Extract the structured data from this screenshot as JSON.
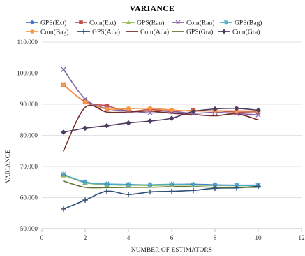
{
  "chart_data": {
    "type": "line",
    "title": "VARIANCE",
    "xlabel": "NUMBER OF ESTIMATORS",
    "ylabel": "VARIANCE",
    "xlim": [
      0,
      12
    ],
    "ylim": [
      50,
      110
    ],
    "x_ticks": [
      0,
      2,
      4,
      6,
      8,
      10,
      12
    ],
    "y_ticks": [
      50,
      60,
      70,
      80,
      90,
      100,
      110
    ],
    "x_tick_labels": [
      "0",
      "2",
      "4",
      "6",
      "8",
      "10",
      "12"
    ],
    "y_tick_labels": [
      "50.000",
      "60.000",
      "70.000",
      "80.000",
      "90.000",
      "100.000",
      "110.000"
    ],
    "grid": "horizontal",
    "legend_position": "top",
    "smooth": true,
    "x": [
      1,
      2,
      3,
      4,
      5,
      6,
      7,
      8,
      9,
      10
    ],
    "series": [
      {
        "name": "GPS(Ext)",
        "color": "#4472C4",
        "marker": "diamond",
        "values": [
          67.3,
          65.0,
          64.3,
          64.2,
          64.0,
          64.2,
          64.3,
          64.1,
          64.0,
          64.0
        ]
      },
      {
        "name": "Com(Ext)",
        "color": "#C0504D",
        "marker": "square",
        "values": [
          96.3,
          90.8,
          89.5,
          87.8,
          88.3,
          87.8,
          88.0,
          87.9,
          87.5,
          87.6
        ]
      },
      {
        "name": "GPS(Ran)",
        "color": "#9BBB59",
        "marker": "triangle",
        "values": [
          67.2,
          64.8,
          64.1,
          64.0,
          63.9,
          64.0,
          64.0,
          63.9,
          63.8,
          63.8
        ]
      },
      {
        "name": "Com(Ran)",
        "color": "#8064A2",
        "marker": "x",
        "values": [
          101.2,
          91.7,
          88.6,
          88.0,
          87.2,
          87.6,
          87.1,
          87.4,
          87.0,
          86.6
        ]
      },
      {
        "name": "GPS(Bag)",
        "color": "#4BACC6",
        "marker": "asterisk",
        "values": [
          67.5,
          64.9,
          64.4,
          64.2,
          64.1,
          64.3,
          64.1,
          64.0,
          63.9,
          63.9
        ]
      },
      {
        "name": "Com(Bag)",
        "color": "#F79646",
        "marker": "circle",
        "values": [
          96.2,
          90.7,
          88.5,
          88.6,
          88.7,
          88.2,
          87.8,
          87.9,
          87.9,
          87.8
        ]
      },
      {
        "name": "GPS(Ada)",
        "color": "#2C4D75",
        "marker": "plus",
        "values": [
          56.3,
          59.2,
          62.0,
          61.0,
          61.8,
          62.0,
          62.3,
          63.0,
          63.1,
          63.6
        ]
      },
      {
        "name": "Com(Ada)",
        "color": "#772C2A",
        "marker": "none",
        "values": [
          75.0,
          89.0,
          87.5,
          87.5,
          87.8,
          87.1,
          86.7,
          86.3,
          86.9,
          85.0
        ]
      },
      {
        "name": "GPS(Gra)",
        "color": "#5F7530",
        "marker": "none",
        "values": [
          65.3,
          63.3,
          63.2,
          63.3,
          63.3,
          63.5,
          63.5,
          63.3,
          63.3,
          63.3
        ]
      },
      {
        "name": "Com(Gra)",
        "color": "#4D3B62",
        "marker": "diamond",
        "values": [
          81.0,
          82.3,
          83.1,
          84.0,
          84.6,
          85.5,
          87.7,
          88.5,
          88.7,
          88.1
        ]
      }
    ]
  }
}
